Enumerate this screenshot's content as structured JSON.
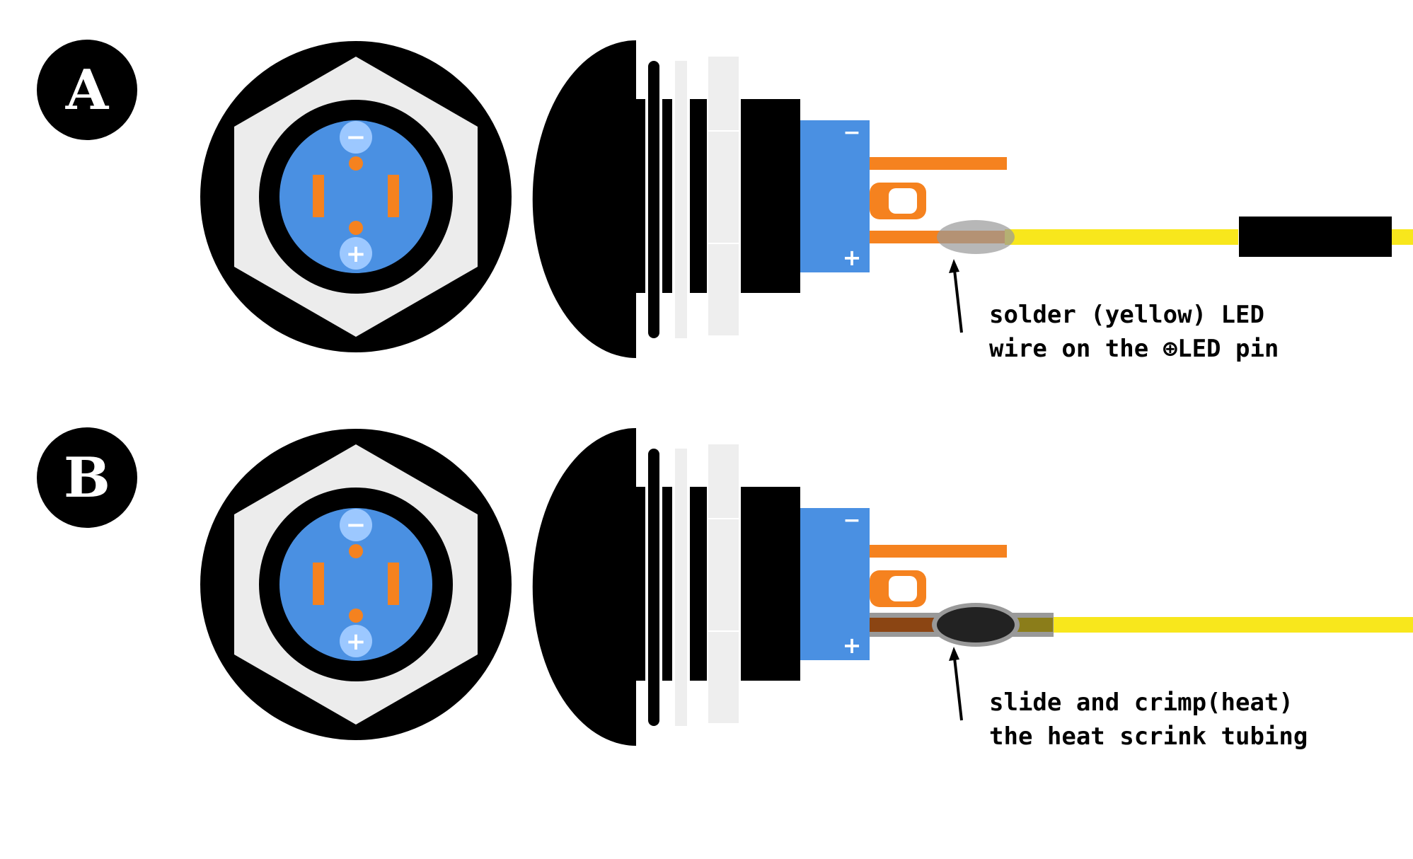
{
  "colors": {
    "black": "#000000",
    "nut_grey": "#ececec",
    "washer_grey": "#eeeeee",
    "led_blue": "#4a90e2",
    "pin_orange": "#f5821f",
    "wire_yellow": "#f8e71c",
    "minus_badge": "#9cc8ff",
    "solder_brown": "#8b4513",
    "tube_olive": "#8b7d1a",
    "tube_grey": "#999999"
  },
  "icons": {
    "minus_symbol": "−",
    "plus_symbol": "+"
  },
  "panels": [
    {
      "id": "a",
      "label": "A",
      "caption_lines": [
        "solder (yellow) LED",
        "wire on the ⊕LED pin"
      ]
    },
    {
      "id": "b",
      "label": "B",
      "caption_lines": [
        "slide and crimp(heat)",
        "the heat scrink tubing"
      ]
    }
  ]
}
